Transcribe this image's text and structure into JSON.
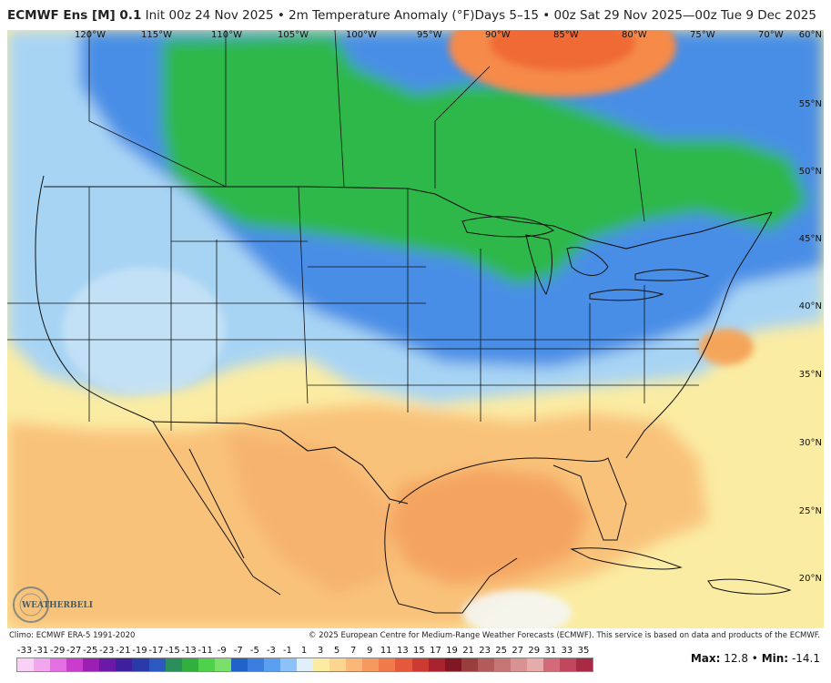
{
  "header": {
    "model": "ECMWF Ens [M] 0.1",
    "title": "Init 00z 24 Nov 2025 • 2m Temperature Anomaly (°F)",
    "valid": "Days 5–15 • 00z Sat 29 Nov 2025—00z Tue 9 Dec 2025"
  },
  "longitudes": [
    "120°W",
    "115°W",
    "110°W",
    "105°W",
    "100°W",
    "95°W",
    "90°W",
    "85°W",
    "80°W",
    "75°W",
    "70°W"
  ],
  "latitudes": [
    "60°N",
    "55°N",
    "50°N",
    "45°N",
    "40°N",
    "35°N",
    "30°N",
    "25°N",
    "20°N"
  ],
  "footer": {
    "climo": "Climo: ECMWF ERA-5 1991-2020",
    "copyright": "© 2025 European Centre for Medium-Range Weather Forecasts (ECMWF). This service is based on data and products of the ECMWF."
  },
  "legend": {
    "labels": [
      "-33",
      "-31",
      "-29",
      "-27",
      "-25",
      "-23",
      "-21",
      "-19",
      "-17",
      "-15",
      "-13",
      "-11",
      "-9",
      "-7",
      "-5",
      "-3",
      "-1",
      "1",
      "3",
      "5",
      "7",
      "9",
      "11",
      "13",
      "15",
      "17",
      "19",
      "21",
      "23",
      "25",
      "27",
      "29",
      "31",
      "33",
      "35"
    ],
    "colors": [
      "#f9d0f6",
      "#f2a6ee",
      "#e46fe2",
      "#c93ccd",
      "#9b1fb3",
      "#6a1aa6",
      "#3f1f9c",
      "#2a3aa8",
      "#2c58c0",
      "#2a8f5c",
      "#31b040",
      "#4dd24a",
      "#7ae06a",
      "#1f63c8",
      "#3a7fe0",
      "#5a9ff0",
      "#8cc2f8",
      "#dff0fb",
      "#fbeca3",
      "#fcd591",
      "#f9b878",
      "#f5995f",
      "#ef7a4a",
      "#e4583c",
      "#cd3a32",
      "#a8232d",
      "#801723",
      "#9a3d3d",
      "#b35a5a",
      "#c77676",
      "#d89292",
      "#e6acac",
      "#d36a7a",
      "#c2465e",
      "#a82a45"
    ],
    "max_label": "Max:",
    "max_value": "12.8",
    "min_label": "Min:",
    "min_value": "-14.1"
  },
  "logo": {
    "text": "WeatherBELL"
  },
  "colors": {
    "green_anomaly": "#2fb84a",
    "blue_anomaly": "#2f72d8",
    "light_blue": "#9fd0f4",
    "warm_orange": "#f7b06a",
    "hot_orange": "#f27a3a",
    "neutral_yellow": "#fbeca3"
  }
}
